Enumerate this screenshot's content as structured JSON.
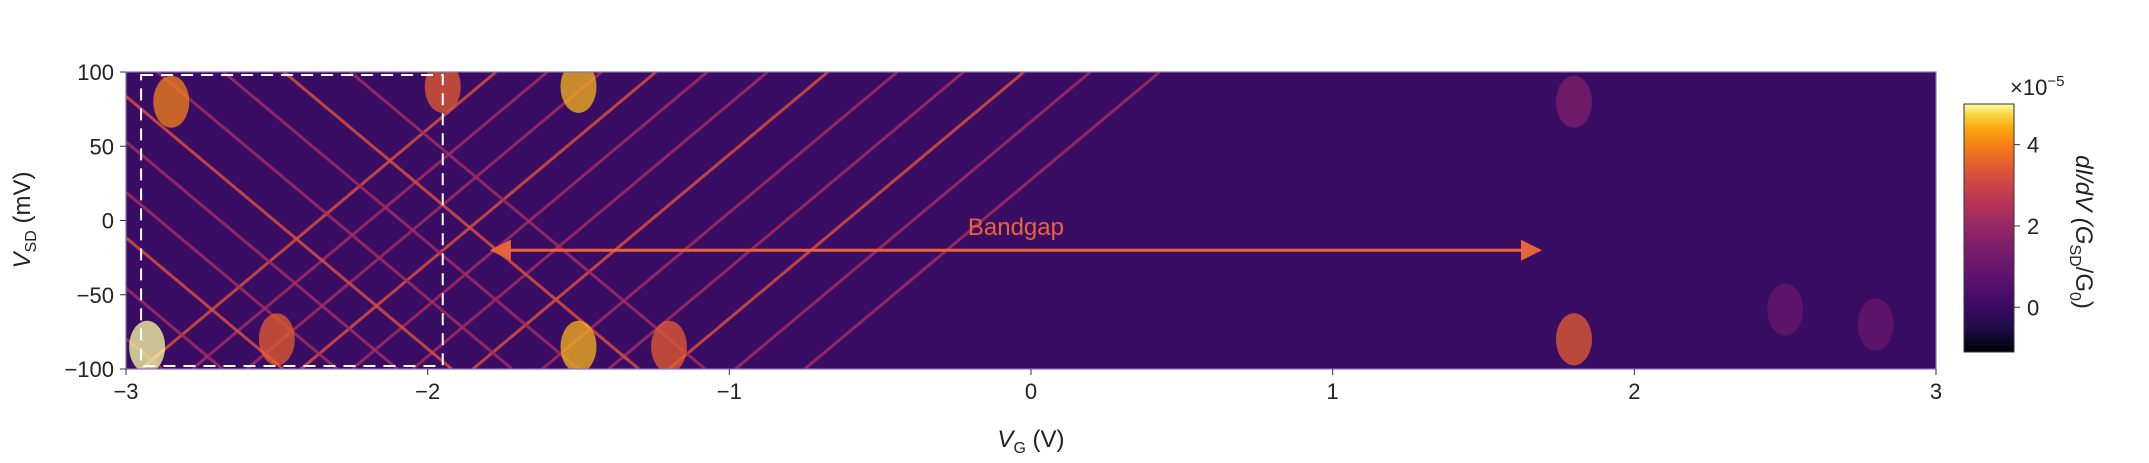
{
  "chart_data": {
    "type": "heatmap",
    "title": "",
    "xlabel": {
      "main": "V",
      "sub": "G",
      "rest": " (V)"
    },
    "ylabel": {
      "main": "V",
      "sub": "SD",
      "rest": " (mV)"
    },
    "xlim": [
      -3,
      3
    ],
    "ylim": [
      -100,
      100
    ],
    "x_ticks": [
      -3,
      -2,
      -1,
      0,
      1,
      2,
      3
    ],
    "x_tick_labels": [
      "−3",
      "−2",
      "−1",
      "0",
      "1",
      "2",
      "3"
    ],
    "y_ticks": [
      -100,
      -50,
      0,
      50,
      100
    ],
    "y_tick_labels": [
      "−100",
      "−50",
      "0",
      "50",
      "100"
    ],
    "colorbar": {
      "label_parts": [
        "dI/dV (G",
        "SD",
        "/G",
        "0",
        ")"
      ],
      "scale_prefix": "×10",
      "scale_exponent": "−5",
      "range": [
        -1.1,
        5
      ],
      "ticks": [
        0,
        2,
        4
      ],
      "tick_labels": [
        "0",
        "2",
        "4"
      ],
      "colormap": "inferno"
    },
    "annotations": [
      {
        "text": "Bandgap",
        "type": "double-arrow",
        "x_start": -1.8,
        "x_end": 1.7,
        "y": -20,
        "color": "#e8643a"
      }
    ],
    "highlight_box": {
      "x_range": [
        -2.95,
        -1.95
      ],
      "y_range": [
        -98,
        98
      ],
      "style": "dashed",
      "color": "#ffffff"
    },
    "features": {
      "background_level": 0,
      "coulomb_diamond_region_x": [
        -3,
        -1.95
      ],
      "diamond_edges": [
        {
          "x0": -2.95,
          "slope_sign": 1
        },
        {
          "x0": -2.78,
          "slope_sign": 1
        },
        {
          "x0": -2.6,
          "slope_sign": 1
        },
        {
          "x0": -2.42,
          "slope_sign": 1
        },
        {
          "x0": -2.25,
          "slope_sign": 1
        },
        {
          "x0": -2.05,
          "slope_sign": 1
        },
        {
          "x0": -1.85,
          "slope_sign": 1
        },
        {
          "x0": -1.62,
          "slope_sign": 1
        },
        {
          "x0": -1.4,
          "slope_sign": 1
        },
        {
          "x0": -1.2,
          "slope_sign": 1
        },
        {
          "x0": -0.98,
          "slope_sign": 1
        },
        {
          "x0": -0.75,
          "slope_sign": 1
        },
        {
          "x0": -3.05,
          "slope_sign": -1
        },
        {
          "x0": -2.88,
          "slope_sign": -1
        },
        {
          "x0": -2.68,
          "slope_sign": -1
        },
        {
          "x0": -2.48,
          "slope_sign": -1
        },
        {
          "x0": -2.3,
          "slope_sign": -1
        },
        {
          "x0": -2.1,
          "slope_sign": -1
        },
        {
          "x0": -1.92,
          "slope_sign": -1
        },
        {
          "x0": -1.72,
          "slope_sign": -1
        },
        {
          "x0": -1.5,
          "slope_sign": -1
        },
        {
          "x0": -1.3,
          "slope_sign": -1
        },
        {
          "x0": -1.08,
          "slope_sign": -1
        }
      ],
      "hot_spots": [
        {
          "x": -2.93,
          "y": -85,
          "value": 5
        },
        {
          "x": -2.85,
          "y": 80,
          "value": 4
        },
        {
          "x": -1.95,
          "y": 90,
          "value": 3.5
        },
        {
          "x": -1.5,
          "y": 90,
          "value": 4.5
        },
        {
          "x": -1.5,
          "y": -85,
          "value": 4.5
        },
        {
          "x": -2.5,
          "y": -80,
          "value": 3.5
        },
        {
          "x": -1.2,
          "y": -85,
          "value": 3.5
        },
        {
          "x": 1.8,
          "y": -80,
          "value": 3.5
        },
        {
          "x": 1.8,
          "y": 80,
          "value": 1.5
        },
        {
          "x": 2.5,
          "y": -60,
          "value": 1
        },
        {
          "x": 2.8,
          "y": -70,
          "value": 1
        }
      ]
    }
  }
}
